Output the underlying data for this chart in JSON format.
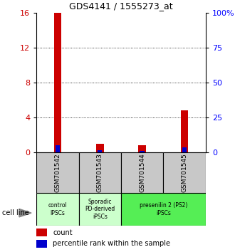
{
  "title": "GDS4141 / 1555273_at",
  "samples": [
    "GSM701542",
    "GSM701543",
    "GSM701544",
    "GSM701545"
  ],
  "count_values": [
    16,
    1.0,
    0.8,
    4.8
  ],
  "percentile_values": [
    5.2,
    1.4,
    1.2,
    3.8
  ],
  "ylim_left": [
    0,
    16
  ],
  "ylim_right": [
    0,
    100
  ],
  "yticks_left": [
    0,
    4,
    8,
    12,
    16
  ],
  "yticks_right": [
    0,
    25,
    50,
    75,
    100
  ],
  "yticklabels_right": [
    "0",
    "25",
    "50",
    "75",
    "100%"
  ],
  "count_color": "#cc0000",
  "percentile_color": "#0000cc",
  "bar_width": 0.18,
  "sample_box_color": "#c8c8c8",
  "group_defs": [
    {
      "gstart": 0,
      "gend": 0,
      "label": "control\nIPSCs",
      "color": "#ccffcc"
    },
    {
      "gstart": 1,
      "gend": 1,
      "label": "Sporadic\nPD-derived\niPSCs",
      "color": "#ccffcc"
    },
    {
      "gstart": 2,
      "gend": 3,
      "label": "presenilin 2 (PS2)\niPSCs",
      "color": "#55ee55"
    }
  ],
  "cell_line_label": "cell line",
  "legend_count": "count",
  "legend_percentile": "percentile rank within the sample"
}
